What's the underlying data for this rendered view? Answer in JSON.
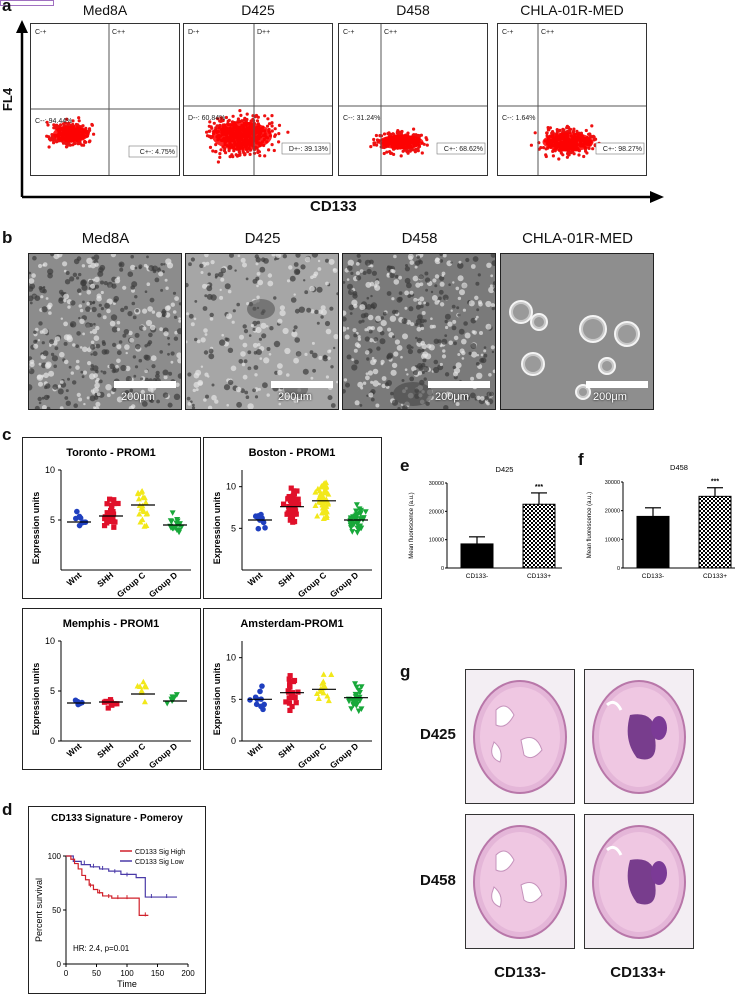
{
  "panels": {
    "a": "a",
    "b": "b",
    "c": "c",
    "d": "d",
    "e": "e",
    "f": "f",
    "g": "g"
  },
  "flow": {
    "y_axis_label": "FL4",
    "x_axis_label": "CD133",
    "plots": [
      {
        "title": "Med8A",
        "ul": "C-+",
        "ur": "C++",
        "ll": "C--: 94.44%",
        "lr": "C+-: 4.75%"
      },
      {
        "title": "D425",
        "ul": "D-+",
        "ur": "D++",
        "ll": "D--: 60.84%",
        "lr": "D+-: 39.13%"
      },
      {
        "title": "D458",
        "ul": "C-+",
        "ur": "C++",
        "ll": "C--: 31.24%",
        "lr": "C+-: 68.62%"
      },
      {
        "title": "CHLA-01R-MED",
        "ul": "C-+",
        "ur": "C++",
        "ll": "C--: 1.64%",
        "lr": "C+-: 98.27%"
      }
    ]
  },
  "micro": {
    "titles": [
      "Med8A",
      "D425",
      "D458",
      "CHLA-01R-MED"
    ],
    "scale": "200μm"
  },
  "expression": {
    "ylabel": "Expression units",
    "colors": {
      "Wnt": "#1f3fbf",
      "SHH": "#e0102a",
      "Group C": "#f2e81a",
      "Group D": "#18a83a"
    },
    "plots": [
      {
        "title": "Toronto - PROM1",
        "ymax": 10,
        "yticks": [
          "5",
          "10"
        ],
        "categories": [
          "Wnt",
          "SHH",
          "Group C",
          "Group D"
        ],
        "medians": [
          4.8,
          5.4,
          6.5,
          4.5
        ]
      },
      {
        "title": "Boston - PROM1",
        "ymax": 12,
        "yticks": [
          "5",
          "10"
        ],
        "categories": [
          "Wnt",
          "SHH",
          "Group C",
          "Group D"
        ],
        "medians": [
          6.0,
          7.6,
          8.3,
          6.0
        ]
      },
      {
        "title": "Memphis - PROM1",
        "ymax": 10,
        "yticks": [
          "0",
          "5",
          "10"
        ],
        "categories": [
          "Wnt",
          "SHH",
          "Group C",
          "Group D"
        ],
        "medians": [
          3.8,
          3.9,
          4.7,
          4.0
        ]
      },
      {
        "title": "Amsterdam-PROM1",
        "ymax": 12,
        "yticks": [
          "0",
          "5",
          "10"
        ],
        "categories": [
          "Wnt",
          "SHH",
          "Group C",
          "Group D"
        ],
        "medians": [
          5.0,
          5.8,
          6.2,
          5.2
        ]
      }
    ]
  },
  "chart_data": [
    {
      "type": "bar",
      "title": "D425",
      "ylabel": "Mean fluorescence (a.u.)",
      "categories": [
        "CD133-",
        "CD133+"
      ],
      "values": [
        8500,
        22500
      ],
      "errors": [
        2500,
        4000
      ],
      "ylim": [
        0,
        30000
      ],
      "yticks": [
        "0",
        "10000",
        "20000",
        "30000"
      ],
      "significance": "***",
      "fills": [
        "#000000",
        "checkered"
      ]
    },
    {
      "type": "bar",
      "title": "D458",
      "ylabel": "Mean fluorescence (a.u.)",
      "categories": [
        "CD133-",
        "CD133+"
      ],
      "values": [
        18000,
        25000
      ],
      "errors": [
        3000,
        3000
      ],
      "ylim": [
        0,
        30000
      ],
      "yticks": [
        "0",
        "10000",
        "20000",
        "30000"
      ],
      "significance": "***",
      "fills": [
        "#000000",
        "checkered"
      ]
    }
  ],
  "survival": {
    "title": "CD133 Signature - Pomeroy",
    "ylabel": "Percent survival",
    "xlabel": "Time",
    "xticks": [
      "0",
      "50",
      "100",
      "150",
      "200"
    ],
    "yticks": [
      "0",
      "50",
      "100"
    ],
    "legend": [
      {
        "label": "CD133 Sig High",
        "color": "#d0202a"
      },
      {
        "label": "CD133 Sig Low",
        "color": "#4a3aa8"
      }
    ],
    "stat": "HR: 2.4, p=0.01",
    "high_steps": [
      [
        0,
        100
      ],
      [
        8,
        97
      ],
      [
        14,
        93
      ],
      [
        20,
        88
      ],
      [
        26,
        82
      ],
      [
        32,
        78
      ],
      [
        38,
        73
      ],
      [
        45,
        69
      ],
      [
        52,
        66
      ],
      [
        60,
        63
      ],
      [
        75,
        61
      ],
      [
        95,
        61
      ],
      [
        112,
        61
      ],
      [
        120,
        45
      ],
      [
        135,
        45
      ]
    ],
    "low_steps": [
      [
        0,
        100
      ],
      [
        12,
        95
      ],
      [
        25,
        92
      ],
      [
        40,
        90
      ],
      [
        55,
        88
      ],
      [
        70,
        86
      ],
      [
        90,
        83
      ],
      [
        115,
        80
      ],
      [
        130,
        62
      ],
      [
        150,
        62
      ],
      [
        182,
        62
      ]
    ]
  },
  "histology": {
    "rows": [
      "D425",
      "D458"
    ],
    "cols": [
      "CD133-",
      "CD133+"
    ]
  }
}
